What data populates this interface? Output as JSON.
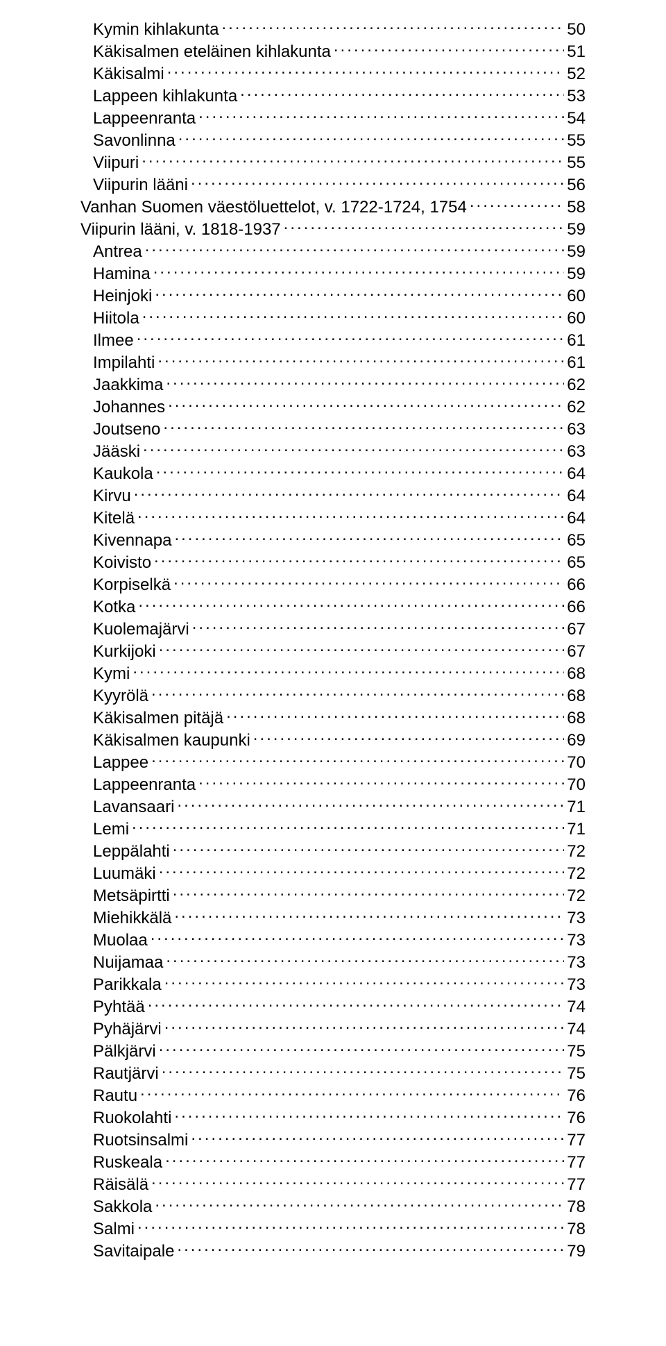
{
  "toc": [
    {
      "indent": 0,
      "label": "Kymin kihlakunta",
      "page": "50"
    },
    {
      "indent": 0,
      "label": "Käkisalmen eteläinen kihlakunta",
      "page": "51"
    },
    {
      "indent": 0,
      "label": "Käkisalmi",
      "page": "52"
    },
    {
      "indent": 0,
      "label": "Lappeen kihlakunta",
      "page": "53"
    },
    {
      "indent": 0,
      "label": "Lappeenranta",
      "page": "54"
    },
    {
      "indent": 0,
      "label": "Savonlinna",
      "page": "55"
    },
    {
      "indent": 0,
      "label": "Viipuri",
      "page": "55"
    },
    {
      "indent": 0,
      "label": "Viipurin lääni",
      "page": "56"
    },
    {
      "indent": 1,
      "label": "Vanhan Suomen väestöluettelot, v. 1722-1724, 1754",
      "page": "58"
    },
    {
      "indent": 1,
      "label": "Viipurin lääni, v. 1818-1937",
      "page": "59"
    },
    {
      "indent": 2,
      "label": "Antrea",
      "page": "59"
    },
    {
      "indent": 2,
      "label": "Hamina",
      "page": "59"
    },
    {
      "indent": 2,
      "label": "Heinjoki",
      "page": "60"
    },
    {
      "indent": 2,
      "label": "Hiitola",
      "page": "60"
    },
    {
      "indent": 2,
      "label": "Ilmee",
      "page": "61"
    },
    {
      "indent": 2,
      "label": "Impilahti",
      "page": "61"
    },
    {
      "indent": 2,
      "label": "Jaakkima",
      "page": "62"
    },
    {
      "indent": 2,
      "label": "Johannes",
      "page": "62"
    },
    {
      "indent": 2,
      "label": "Joutseno",
      "page": "63"
    },
    {
      "indent": 2,
      "label": "Jääski",
      "page": "63"
    },
    {
      "indent": 2,
      "label": "Kaukola",
      "page": "64"
    },
    {
      "indent": 2,
      "label": "Kirvu",
      "page": "64"
    },
    {
      "indent": 2,
      "label": "Kitelä",
      "page": "64"
    },
    {
      "indent": 2,
      "label": "Kivennapa",
      "page": "65"
    },
    {
      "indent": 2,
      "label": "Koivisto",
      "page": "65"
    },
    {
      "indent": 2,
      "label": "Korpiselkä",
      "page": "66"
    },
    {
      "indent": 2,
      "label": "Kotka",
      "page": "66"
    },
    {
      "indent": 2,
      "label": "Kuolemajärvi",
      "page": "67"
    },
    {
      "indent": 2,
      "label": "Kurkijoki",
      "page": "67"
    },
    {
      "indent": 2,
      "label": "Kymi",
      "page": "68"
    },
    {
      "indent": 2,
      "label": "Kyyrölä",
      "page": "68"
    },
    {
      "indent": 2,
      "label": "Käkisalmen pitäjä",
      "page": "68"
    },
    {
      "indent": 2,
      "label": "Käkisalmen kaupunki",
      "page": "69"
    },
    {
      "indent": 2,
      "label": "Lappee",
      "page": "70"
    },
    {
      "indent": 2,
      "label": "Lappeenranta",
      "page": "70"
    },
    {
      "indent": 2,
      "label": "Lavansaari",
      "page": "71"
    },
    {
      "indent": 2,
      "label": "Lemi",
      "page": "71"
    },
    {
      "indent": 2,
      "label": "Leppälahti",
      "page": "72"
    },
    {
      "indent": 2,
      "label": "Luumäki",
      "page": "72"
    },
    {
      "indent": 2,
      "label": "Metsäpirtti",
      "page": "72"
    },
    {
      "indent": 2,
      "label": "Miehikkälä",
      "page": "73"
    },
    {
      "indent": 2,
      "label": "Muolaa",
      "page": "73"
    },
    {
      "indent": 2,
      "label": "Nuijamaa",
      "page": "73"
    },
    {
      "indent": 2,
      "label": "Parikkala",
      "page": "73"
    },
    {
      "indent": 2,
      "label": "Pyhtää",
      "page": "74"
    },
    {
      "indent": 2,
      "label": "Pyhäjärvi",
      "page": "74"
    },
    {
      "indent": 2,
      "label": "Pälkjärvi",
      "page": "75"
    },
    {
      "indent": 2,
      "label": "Rautjärvi",
      "page": "75"
    },
    {
      "indent": 2,
      "label": "Rautu",
      "page": "76"
    },
    {
      "indent": 2,
      "label": "Ruokolahti",
      "page": "76"
    },
    {
      "indent": 2,
      "label": "Ruotsinsalmi",
      "page": "77"
    },
    {
      "indent": 2,
      "label": "Ruskeala",
      "page": "77"
    },
    {
      "indent": 2,
      "label": "Räisälä",
      "page": "77"
    },
    {
      "indent": 2,
      "label": "Sakkola",
      "page": "78"
    },
    {
      "indent": 2,
      "label": "Salmi",
      "page": "78"
    },
    {
      "indent": 2,
      "label": "Savitaipale",
      "page": "79"
    }
  ]
}
